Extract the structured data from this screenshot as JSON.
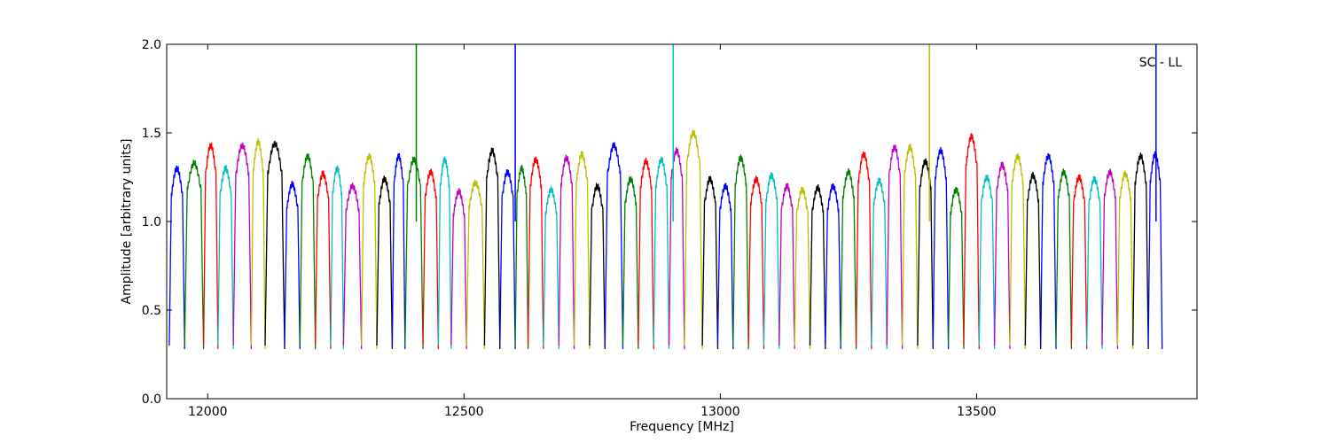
{
  "chart_data": {
    "type": "line",
    "title": "",
    "annotation": "SC - LL",
    "xlabel": "Frequency [MHz]",
    "ylabel": "Amplitude [arbitrary units]",
    "xlim": [
      11920,
      13930
    ],
    "ylim": [
      0.0,
      2.0
    ],
    "x_ticks": [
      {
        "value": 12000,
        "label": "12000"
      },
      {
        "value": 12500,
        "label": "12500"
      },
      {
        "value": 13000,
        "label": "13000"
      },
      {
        "value": 13500,
        "label": "13500"
      }
    ],
    "y_ticks": [
      {
        "value": 0.0,
        "label": "0.0"
      },
      {
        "value": 0.5,
        "label": "0.5"
      },
      {
        "value": 1.0,
        "label": "1.0"
      },
      {
        "value": 1.5,
        "label": "1.5"
      },
      {
        "value": 2.0,
        "label": "2.0"
      }
    ],
    "grid": false,
    "legend": "none",
    "color_cycle": [
      "#0000ff",
      "#008000",
      "#ff0000",
      "#00bfbf",
      "#bf00bf",
      "#bfbf00",
      "#000000"
    ],
    "channel_width_mhz": 25.8,
    "channels": [
      {
        "start": 11925,
        "end": 11955,
        "level": 1.3,
        "color": "#0000ff"
      },
      {
        "start": 11955,
        "end": 11992,
        "level": 1.33,
        "color": "#008000"
      },
      {
        "start": 11992,
        "end": 12020,
        "level": 1.43,
        "color": "#ff0000"
      },
      {
        "start": 12020,
        "end": 12050,
        "level": 1.3,
        "color": "#00bfbf"
      },
      {
        "start": 12050,
        "end": 12085,
        "level": 1.43,
        "color": "#bf00bf"
      },
      {
        "start": 12085,
        "end": 12112,
        "level": 1.45,
        "color": "#bfbf00"
      },
      {
        "start": 12112,
        "end": 12150,
        "level": 1.44,
        "color": "#000000"
      },
      {
        "start": 12150,
        "end": 12180,
        "level": 1.21,
        "color": "#0000ff"
      },
      {
        "start": 12180,
        "end": 12210,
        "level": 1.37,
        "color": "#008000"
      },
      {
        "start": 12210,
        "end": 12240,
        "level": 1.27,
        "color": "#ff0000"
      },
      {
        "start": 12240,
        "end": 12265,
        "level": 1.3,
        "color": "#00bfbf"
      },
      {
        "start": 12265,
        "end": 12300,
        "level": 1.2,
        "color": "#bf00bf"
      },
      {
        "start": 12300,
        "end": 12330,
        "level": 1.37,
        "color": "#bfbf00"
      },
      {
        "start": 12330,
        "end": 12360,
        "level": 1.24,
        "color": "#000000"
      },
      {
        "start": 12360,
        "end": 12385,
        "level": 1.37,
        "color": "#0000ff"
      },
      {
        "start": 12385,
        "end": 12420,
        "level": 1.35,
        "color": "#008000"
      },
      {
        "start": 12420,
        "end": 12450,
        "level": 1.28,
        "color": "#ff0000"
      },
      {
        "start": 12450,
        "end": 12475,
        "level": 1.35,
        "color": "#00bfbf"
      },
      {
        "start": 12475,
        "end": 12505,
        "level": 1.17,
        "color": "#bf00bf"
      },
      {
        "start": 12505,
        "end": 12540,
        "level": 1.22,
        "color": "#bfbf00"
      },
      {
        "start": 12540,
        "end": 12570,
        "level": 1.4,
        "color": "#000000"
      },
      {
        "start": 12570,
        "end": 12600,
        "level": 1.28,
        "color": "#0000ff"
      },
      {
        "start": 12600,
        "end": 12625,
        "level": 1.3,
        "color": "#008000"
      },
      {
        "start": 12625,
        "end": 12655,
        "level": 1.35,
        "color": "#ff0000"
      },
      {
        "start": 12655,
        "end": 12685,
        "level": 1.18,
        "color": "#00bfbf"
      },
      {
        "start": 12685,
        "end": 12715,
        "level": 1.36,
        "color": "#bf00bf"
      },
      {
        "start": 12715,
        "end": 12745,
        "level": 1.38,
        "color": "#bfbf00"
      },
      {
        "start": 12745,
        "end": 12775,
        "level": 1.2,
        "color": "#000000"
      },
      {
        "start": 12775,
        "end": 12810,
        "level": 1.43,
        "color": "#0000ff"
      },
      {
        "start": 12810,
        "end": 12840,
        "level": 1.24,
        "color": "#008000"
      },
      {
        "start": 12840,
        "end": 12870,
        "level": 1.34,
        "color": "#ff0000"
      },
      {
        "start": 12870,
        "end": 12900,
        "level": 1.35,
        "color": "#00bfbf"
      },
      {
        "start": 12900,
        "end": 12930,
        "level": 1.4,
        "color": "#bf00bf"
      },
      {
        "start": 12930,
        "end": 12965,
        "level": 1.5,
        "color": "#bfbf00"
      },
      {
        "start": 12965,
        "end": 12995,
        "level": 1.24,
        "color": "#000000"
      },
      {
        "start": 12995,
        "end": 13025,
        "level": 1.2,
        "color": "#0000ff"
      },
      {
        "start": 13025,
        "end": 13055,
        "level": 1.36,
        "color": "#008000"
      },
      {
        "start": 13055,
        "end": 13085,
        "level": 1.24,
        "color": "#ff0000"
      },
      {
        "start": 13085,
        "end": 13115,
        "level": 1.26,
        "color": "#00bfbf"
      },
      {
        "start": 13115,
        "end": 13145,
        "level": 1.2,
        "color": "#bf00bf"
      },
      {
        "start": 13145,
        "end": 13175,
        "level": 1.18,
        "color": "#bfbf00"
      },
      {
        "start": 13175,
        "end": 13205,
        "level": 1.19,
        "color": "#000000"
      },
      {
        "start": 13205,
        "end": 13235,
        "level": 1.2,
        "color": "#0000ff"
      },
      {
        "start": 13235,
        "end": 13265,
        "level": 1.28,
        "color": "#008000"
      },
      {
        "start": 13265,
        "end": 13295,
        "level": 1.38,
        "color": "#ff0000"
      },
      {
        "start": 13295,
        "end": 13325,
        "level": 1.23,
        "color": "#00bfbf"
      },
      {
        "start": 13325,
        "end": 13355,
        "level": 1.42,
        "color": "#bf00bf"
      },
      {
        "start": 13355,
        "end": 13385,
        "level": 1.42,
        "color": "#bfbf00"
      },
      {
        "start": 13385,
        "end": 13415,
        "level": 1.34,
        "color": "#000000"
      },
      {
        "start": 13415,
        "end": 13445,
        "level": 1.4,
        "color": "#0000ff"
      },
      {
        "start": 13445,
        "end": 13475,
        "level": 1.18,
        "color": "#008000"
      },
      {
        "start": 13475,
        "end": 13505,
        "level": 1.48,
        "color": "#ff0000"
      },
      {
        "start": 13505,
        "end": 13535,
        "level": 1.25,
        "color": "#00bfbf"
      },
      {
        "start": 13535,
        "end": 13565,
        "level": 1.32,
        "color": "#bf00bf"
      },
      {
        "start": 13565,
        "end": 13595,
        "level": 1.37,
        "color": "#bfbf00"
      },
      {
        "start": 13595,
        "end": 13625,
        "level": 1.26,
        "color": "#000000"
      },
      {
        "start": 13625,
        "end": 13655,
        "level": 1.37,
        "color": "#0000ff"
      },
      {
        "start": 13655,
        "end": 13685,
        "level": 1.28,
        "color": "#008000"
      },
      {
        "start": 13685,
        "end": 13715,
        "level": 1.25,
        "color": "#ff0000"
      },
      {
        "start": 13715,
        "end": 13745,
        "level": 1.24,
        "color": "#00bfbf"
      },
      {
        "start": 13745,
        "end": 13775,
        "level": 1.28,
        "color": "#bf00bf"
      },
      {
        "start": 13775,
        "end": 13805,
        "level": 1.27,
        "color": "#bfbf00"
      },
      {
        "start": 13805,
        "end": 13835,
        "level": 1.37,
        "color": "#000000"
      },
      {
        "start": 13835,
        "end": 13862,
        "level": 1.38,
        "color": "#0000ff"
      }
    ],
    "spikes": [
      {
        "x": 12407,
        "y": 2.0,
        "color": "#008000"
      },
      {
        "x": 12600,
        "y": 2.0,
        "color": "#0000ff"
      },
      {
        "x": 12908,
        "y": 2.0,
        "color": "#00bfbf"
      },
      {
        "x": 13408,
        "y": 2.0,
        "color": "#bfbf00"
      },
      {
        "x": 13850,
        "y": 2.0,
        "color": "#0000ff"
      }
    ]
  }
}
